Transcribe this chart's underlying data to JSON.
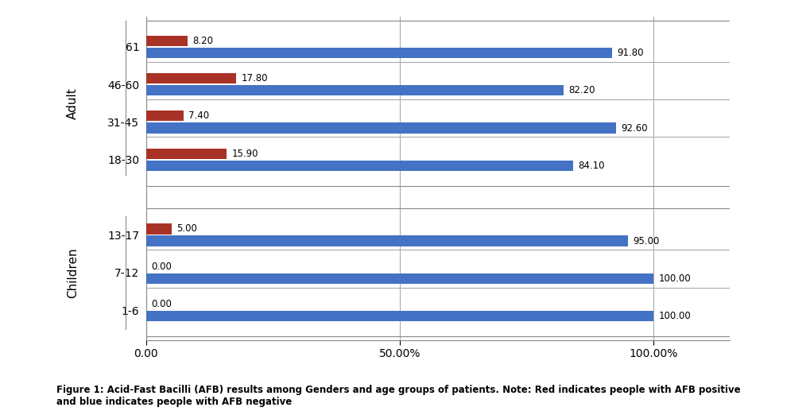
{
  "age_labels": [
    "1-6",
    "7-12",
    "13-17",
    "18-30",
    "31-45",
    "46-60",
    "61"
  ],
  "red_values": [
    0.0,
    0.0,
    5.0,
    15.9,
    7.4,
    17.8,
    8.2
  ],
  "blue_values": [
    100.0,
    100.0,
    95.0,
    84.1,
    92.6,
    82.2,
    91.8
  ],
  "red_labels": [
    "0.00",
    "0.00",
    "5.00",
    "15.90",
    "7.40",
    "17.80",
    "8.20"
  ],
  "blue_labels": [
    "100.00",
    "100.00",
    "95.00",
    "84.10",
    "92.60",
    "82.20",
    "91.80"
  ],
  "red_color": "#A93226",
  "blue_color": "#4472C4",
  "group_label_children": "Children",
  "group_label_adult": "Adult",
  "xlabel_ticks": [
    "0.00",
    "50.00%",
    "100.00%"
  ],
  "xlabel_values": [
    0,
    50,
    100
  ],
  "caption": "Figure 1: Acid-Fast Bacilli (AFB) results among Genders and age groups of patients. Note: Red indicates people with AFB positive\nand blue indicates people with AFB negative",
  "background_color": "#ffffff",
  "bar_height": 0.28,
  "figsize": [
    10.2,
    5.22
  ],
  "dpi": 100,
  "children_indices": [
    0,
    1,
    2
  ],
  "adult_indices": [
    3,
    4,
    5,
    6
  ]
}
